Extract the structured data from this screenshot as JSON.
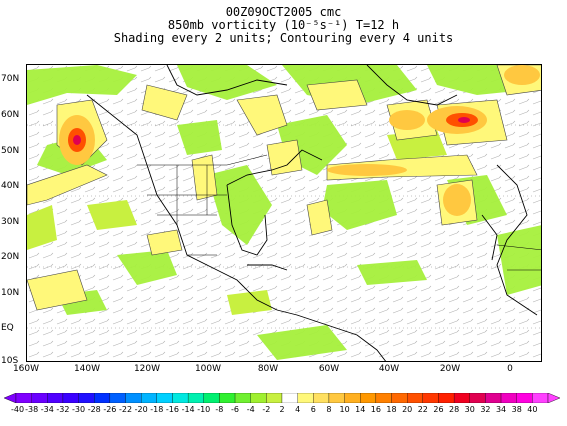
{
  "title": {
    "line1": "00Z09OCT2005 cmc",
    "line2": "850mb vorticity (10⁻⁵s⁻¹) T=12 h",
    "line3": "Shading every 2 units; Contouring every 4 units"
  },
  "map": {
    "lat_labels": [
      "70N",
      "60N",
      "50N",
      "40N",
      "30N",
      "20N",
      "10N",
      "EQ",
      "10S"
    ],
    "lon_labels": [
      "160W",
      "140W",
      "120W",
      "100W",
      "80W",
      "60W",
      "40W",
      "20W",
      "0"
    ],
    "region": "North Atlantic / North America"
  },
  "colorbar": {
    "labels": [
      "-40",
      "-38",
      "-34",
      "-32",
      "-30",
      "-28",
      "-26",
      "-22",
      "-20",
      "-18",
      "-16",
      "-14",
      "-10",
      "-8",
      "-6",
      "-4",
      "-2",
      "2",
      "4",
      "6",
      "8",
      "10",
      "14",
      "16",
      "18",
      "20",
      "22",
      "26",
      "28",
      "30",
      "32",
      "34",
      "38",
      "40"
    ],
    "colors": [
      "#7f00ff",
      "#6a00ff",
      "#5000ff",
      "#3a00ff",
      "#2010ff",
      "#0030ff",
      "#0060ff",
      "#0090ff",
      "#00b4ff",
      "#00d0ff",
      "#00e8e0",
      "#00f0b0",
      "#00f070",
      "#30f030",
      "#70f030",
      "#a0f030",
      "#c8f040",
      "#ffffff",
      "#fff87a",
      "#ffe060",
      "#ffc840",
      "#ffb020",
      "#ff9800",
      "#ff8000",
      "#ff6800",
      "#ff5000",
      "#ff3800",
      "#ff2000",
      "#f00020",
      "#e00050",
      "#e00090",
      "#f000c0",
      "#ff00e0",
      "#ff40ff"
    ]
  }
}
